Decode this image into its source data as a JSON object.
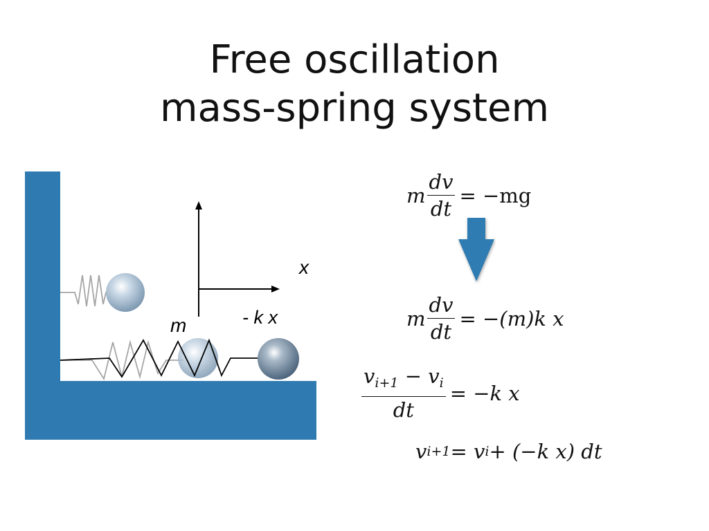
{
  "title": {
    "line1": "Free oscillation",
    "line2": "mass-spring system"
  },
  "diagram": {
    "axis_label_x": "x",
    "mass_label": "m",
    "force_label": "- k x",
    "colors": {
      "wall": "#2f7bb1",
      "ball_light": "#aac3d8",
      "ball_dark": "#7d95aa",
      "spring_black": "#000000",
      "spring_gray": "#aaaaaa"
    }
  },
  "equations": {
    "eq1": {
      "m": "m",
      "num": "dv",
      "den": "dt",
      "rhs": "= −mg"
    },
    "eq2": {
      "m": "m",
      "num": "dv",
      "den": "dt",
      "rhs": "= −(m)k x"
    },
    "eq3": {
      "num": "v",
      "num_sub": "i+1",
      "num_mid": " − v",
      "num_sub2": "i",
      "den": "dt",
      "rhs": "= −k x"
    },
    "eq4": {
      "lhs": "v",
      "lhs_sub": "i+1",
      "mid": " = v",
      "mid_sub": "i",
      "rhs": " + (−k x) dt"
    }
  },
  "arrow_color": "#2f7bb1"
}
